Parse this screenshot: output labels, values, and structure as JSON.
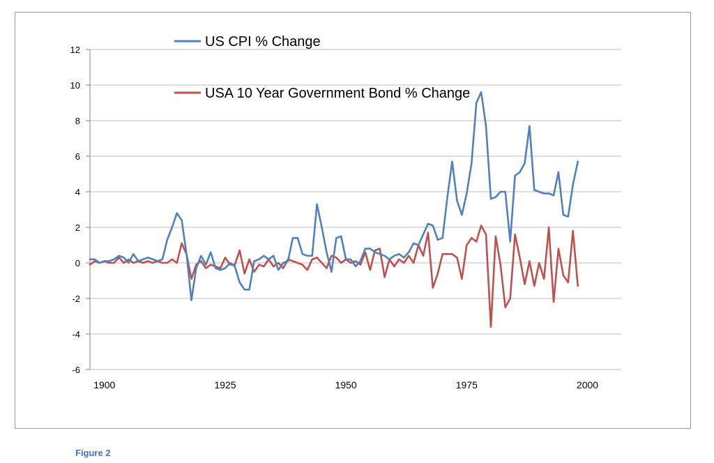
{
  "figure_caption": "Figure 2",
  "chart_data": {
    "type": "line",
    "title": "",
    "xlabel": "",
    "ylabel": "",
    "ylim": [
      -6,
      12
    ],
    "yticks": [
      -6,
      -4,
      -2,
      0,
      2,
      4,
      6,
      8,
      10,
      12
    ],
    "xlim": [
      1897,
      2007
    ],
    "xticks": [
      1900,
      1925,
      1950,
      1975,
      2000
    ],
    "grid": true,
    "legend_position": "top-left, stacked inside plot",
    "series": [
      {
        "name": "US CPI % Change",
        "color": "#4f81bd",
        "points": [
          [
            1897,
            0.2
          ],
          [
            1898,
            0.2
          ],
          [
            1899,
            0.0
          ],
          [
            1900,
            0.1
          ],
          [
            1901,
            0.1
          ],
          [
            1902,
            0.2
          ],
          [
            1903,
            0.4
          ],
          [
            1904,
            0.3
          ],
          [
            1905,
            0.0
          ],
          [
            1906,
            0.5
          ],
          [
            1907,
            0.1
          ],
          [
            1908,
            0.2
          ],
          [
            1909,
            0.3
          ],
          [
            1910,
            0.2
          ],
          [
            1911,
            0.1
          ],
          [
            1912,
            0.2
          ],
          [
            1913,
            1.3
          ],
          [
            1914,
            2.0
          ],
          [
            1915,
            2.8
          ],
          [
            1916,
            2.4
          ],
          [
            1917,
            0.5
          ],
          [
            1918,
            -2.1
          ],
          [
            1919,
            -0.3
          ],
          [
            1920,
            0.4
          ],
          [
            1921,
            -0.1
          ],
          [
            1922,
            0.6
          ],
          [
            1923,
            -0.3
          ],
          [
            1924,
            -0.4
          ],
          [
            1925,
            -0.3
          ],
          [
            1926,
            0.0
          ],
          [
            1927,
            -0.2
          ],
          [
            1928,
            -1.1
          ],
          [
            1929,
            -1.5
          ],
          [
            1930,
            -1.5
          ],
          [
            1931,
            0.1
          ],
          [
            1932,
            0.2
          ],
          [
            1933,
            0.4
          ],
          [
            1934,
            0.2
          ],
          [
            1935,
            0.4
          ],
          [
            1936,
            -0.4
          ],
          [
            1937,
            0.0
          ],
          [
            1938,
            0.1
          ],
          [
            1939,
            1.4
          ],
          [
            1940,
            1.4
          ],
          [
            1941,
            0.5
          ],
          [
            1942,
            0.4
          ],
          [
            1943,
            0.4
          ],
          [
            1944,
            3.3
          ],
          [
            1945,
            2.0
          ],
          [
            1946,
            0.6
          ],
          [
            1947,
            -0.5
          ],
          [
            1948,
            1.4
          ],
          [
            1949,
            1.5
          ],
          [
            1950,
            0.2
          ],
          [
            1951,
            0.2
          ],
          [
            1952,
            -0.2
          ],
          [
            1953,
            0.1
          ],
          [
            1954,
            0.8
          ],
          [
            1955,
            0.8
          ],
          [
            1956,
            0.6
          ],
          [
            1957,
            0.5
          ],
          [
            1958,
            0.4
          ],
          [
            1959,
            0.2
          ],
          [
            1960,
            0.4
          ],
          [
            1961,
            0.5
          ],
          [
            1962,
            0.3
          ],
          [
            1963,
            0.6
          ],
          [
            1964,
            1.1
          ],
          [
            1965,
            1.0
          ],
          [
            1966,
            1.6
          ],
          [
            1967,
            2.2
          ],
          [
            1968,
            2.1
          ],
          [
            1969,
            1.3
          ],
          [
            1970,
            1.4
          ],
          [
            1971,
            3.7
          ],
          [
            1972,
            5.7
          ],
          [
            1973,
            3.5
          ],
          [
            1974,
            2.7
          ],
          [
            1975,
            3.9
          ],
          [
            1976,
            5.6
          ],
          [
            1977,
            9.0
          ],
          [
            1978,
            9.6
          ],
          [
            1979,
            7.7
          ],
          [
            1980,
            3.6
          ],
          [
            1981,
            3.7
          ],
          [
            1982,
            4.0
          ],
          [
            1983,
            4.0
          ],
          [
            1984,
            1.2
          ],
          [
            1985,
            4.9
          ],
          [
            1986,
            5.1
          ],
          [
            1987,
            5.6
          ],
          [
            1988,
            7.7
          ],
          [
            1989,
            4.1
          ],
          [
            1990,
            4.0
          ],
          [
            1991,
            3.9
          ],
          [
            1992,
            3.9
          ],
          [
            1993,
            3.8
          ],
          [
            1994,
            5.1
          ],
          [
            1995,
            2.7
          ],
          [
            1996,
            2.6
          ],
          [
            1997,
            4.4
          ],
          [
            1998,
            5.7
          ]
        ]
      },
      {
        "name": "USA 10 Year Government Bond % Change",
        "color": "#c0504d",
        "points": [
          [
            1897,
            -0.1
          ],
          [
            1898,
            0.1
          ],
          [
            1899,
            0.0
          ],
          [
            1900,
            0.1
          ],
          [
            1901,
            0.0
          ],
          [
            1902,
            0.0
          ],
          [
            1903,
            0.3
          ],
          [
            1904,
            0.0
          ],
          [
            1905,
            0.2
          ],
          [
            1906,
            0.0
          ],
          [
            1907,
            0.1
          ],
          [
            1908,
            0.0
          ],
          [
            1909,
            0.1
          ],
          [
            1910,
            0.0
          ],
          [
            1911,
            0.1
          ],
          [
            1912,
            0.0
          ],
          [
            1913,
            0.0
          ],
          [
            1914,
            0.2
          ],
          [
            1915,
            0.0
          ],
          [
            1916,
            1.1
          ],
          [
            1917,
            0.5
          ],
          [
            1918,
            -0.9
          ],
          [
            1919,
            -0.1
          ],
          [
            1920,
            0.1
          ],
          [
            1921,
            -0.3
          ],
          [
            1922,
            -0.1
          ],
          [
            1923,
            -0.2
          ],
          [
            1924,
            -0.3
          ],
          [
            1925,
            0.3
          ],
          [
            1926,
            -0.1
          ],
          [
            1927,
            -0.1
          ],
          [
            1928,
            0.7
          ],
          [
            1929,
            -0.6
          ],
          [
            1930,
            0.2
          ],
          [
            1931,
            -0.5
          ],
          [
            1932,
            -0.1
          ],
          [
            1933,
            -0.2
          ],
          [
            1934,
            0.2
          ],
          [
            1935,
            -0.2
          ],
          [
            1936,
            0.0
          ],
          [
            1937,
            -0.3
          ],
          [
            1938,
            0.2
          ],
          [
            1939,
            0.1
          ],
          [
            1940,
            0.0
          ],
          [
            1941,
            -0.1
          ],
          [
            1942,
            -0.4
          ],
          [
            1943,
            0.2
          ],
          [
            1944,
            0.3
          ],
          [
            1945,
            0.0
          ],
          [
            1946,
            -0.3
          ],
          [
            1947,
            0.4
          ],
          [
            1948,
            0.3
          ],
          [
            1949,
            0.0
          ],
          [
            1950,
            0.2
          ],
          [
            1951,
            0.0
          ],
          [
            1952,
            0.1
          ],
          [
            1953,
            -0.1
          ],
          [
            1954,
            0.6
          ],
          [
            1955,
            -0.4
          ],
          [
            1956,
            0.7
          ],
          [
            1957,
            0.8
          ],
          [
            1958,
            -0.8
          ],
          [
            1959,
            0.2
          ],
          [
            1960,
            -0.2
          ],
          [
            1961,
            0.2
          ],
          [
            1962,
            0.0
          ],
          [
            1963,
            0.4
          ],
          [
            1964,
            0.0
          ],
          [
            1965,
            1.0
          ],
          [
            1966,
            0.4
          ],
          [
            1967,
            1.7
          ],
          [
            1968,
            -1.4
          ],
          [
            1969,
            -0.6
          ],
          [
            1970,
            0.5
          ],
          [
            1971,
            0.5
          ],
          [
            1972,
            0.5
          ],
          [
            1973,
            0.3
          ],
          [
            1974,
            -0.9
          ],
          [
            1975,
            1.0
          ],
          [
            1976,
            1.4
          ],
          [
            1977,
            1.2
          ],
          [
            1978,
            2.1
          ],
          [
            1979,
            1.6
          ],
          [
            1980,
            -3.6
          ],
          [
            1981,
            1.5
          ],
          [
            1982,
            -0.1
          ],
          [
            1983,
            -2.5
          ],
          [
            1984,
            -2.0
          ],
          [
            1985,
            1.6
          ],
          [
            1986,
            0.3
          ],
          [
            1987,
            -1.2
          ],
          [
            1988,
            0.1
          ],
          [
            1989,
            -1.3
          ],
          [
            1990,
            0.0
          ],
          [
            1991,
            -0.9
          ],
          [
            1992,
            2.0
          ],
          [
            1993,
            -2.2
          ],
          [
            1994,
            0.8
          ],
          [
            1995,
            -0.7
          ],
          [
            1996,
            -1.1
          ],
          [
            1997,
            1.8
          ],
          [
            1998,
            -1.3
          ]
        ]
      }
    ]
  }
}
